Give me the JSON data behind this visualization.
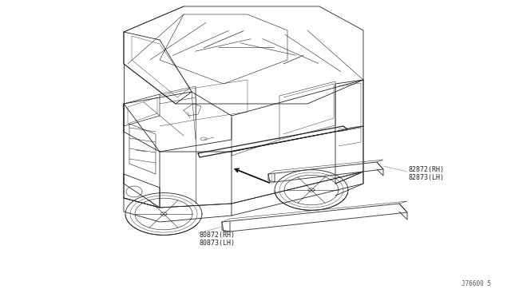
{
  "background_color": "#ffffff",
  "diagram_ref": "J76600 5",
  "label1_line1": "82872(RH)",
  "label1_line2": "82873(LH)",
  "label2_line1": "80872(RH)",
  "label2_line2": "80873(LH)",
  "line_color": "#aaaaaa",
  "car_color": "#222222",
  "part_color": "#444444",
  "lw_car": 0.6,
  "lw_part": 0.7,
  "lw_leader": 0.6,
  "font_size": 6.0,
  "font_family": "monospace",
  "label_color": "#222222",
  "ref_color": "#555555",
  "ref_fontsize": 5.5
}
